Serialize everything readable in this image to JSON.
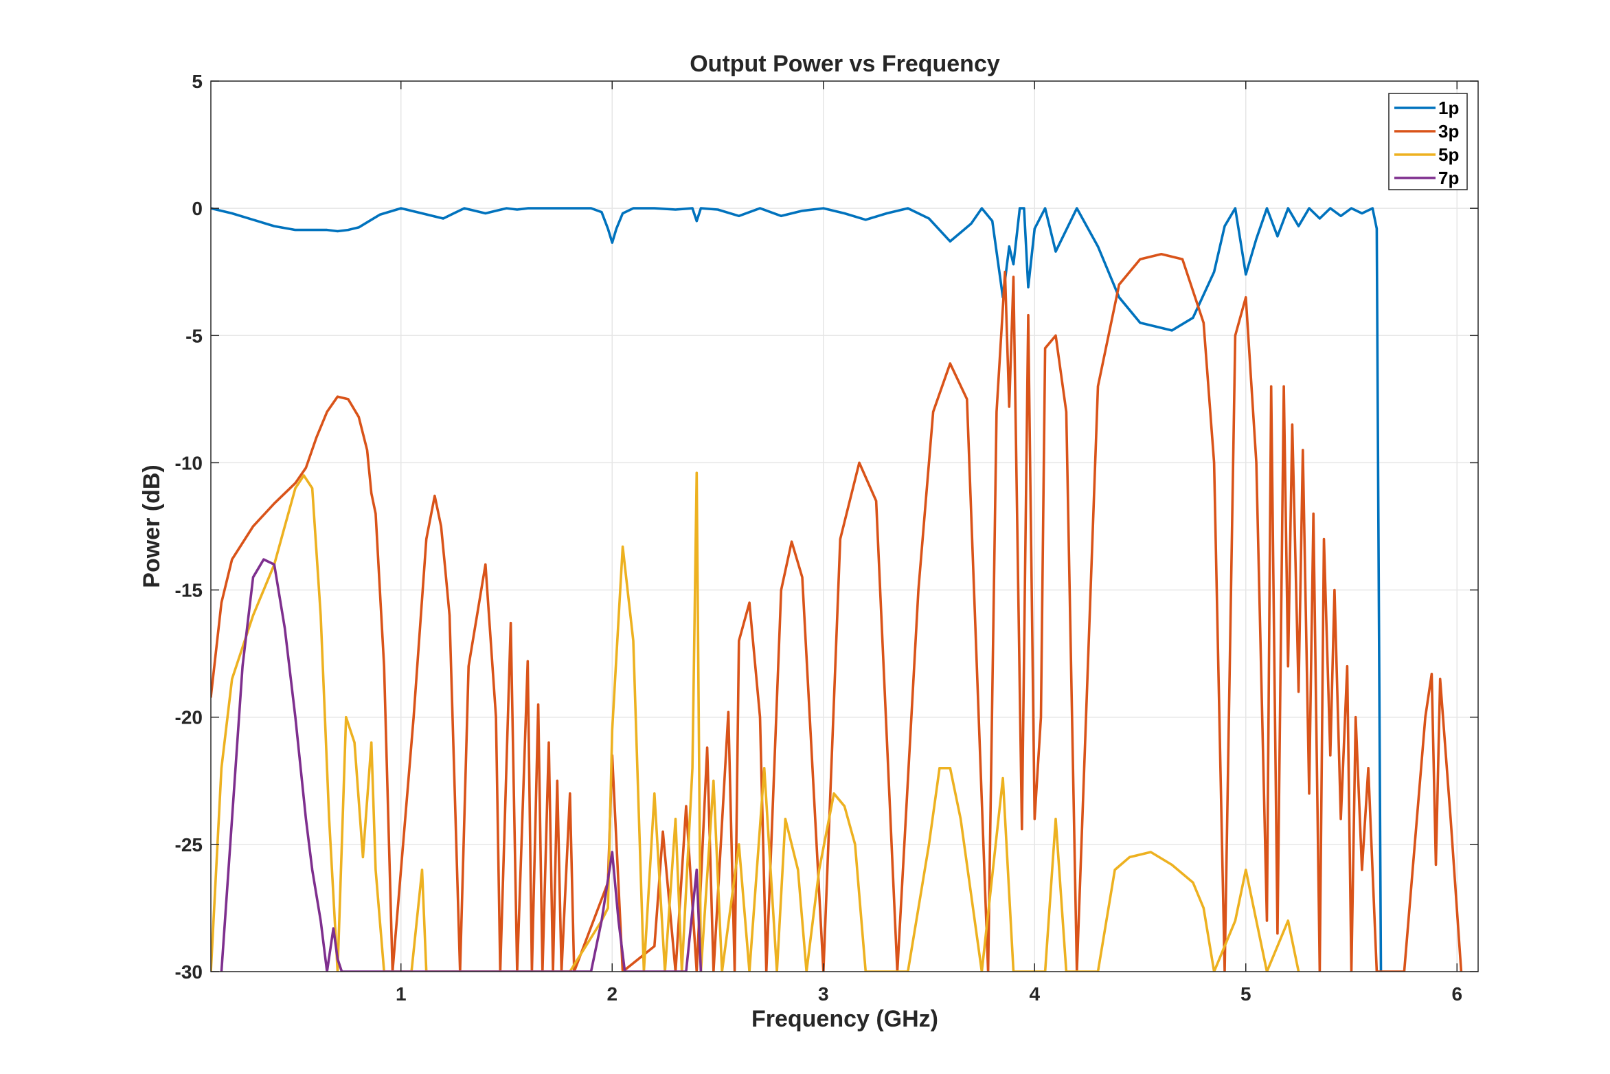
{
  "chart_data": {
    "type": "line",
    "title": "Output Power vs Frequency",
    "xlabel": "Frequency (GHz)",
    "ylabel": "Power (dB)",
    "xlim": [
      0.1,
      6.1
    ],
    "ylim": [
      -30,
      5
    ],
    "xticks": [
      1,
      2,
      3,
      4,
      5,
      6
    ],
    "yticks": [
      5,
      0,
      -5,
      -10,
      -15,
      -20,
      -25,
      -30
    ],
    "grid": true,
    "legend_position": "top-right",
    "series": [
      {
        "name": "1p",
        "color": "#0072BD",
        "points": [
          [
            0.1,
            0
          ],
          [
            0.2,
            -0.2
          ],
          [
            0.3,
            -0.45
          ],
          [
            0.4,
            -0.7
          ],
          [
            0.5,
            -0.85
          ],
          [
            0.6,
            -0.85
          ],
          [
            0.65,
            -0.85
          ],
          [
            0.7,
            -0.9
          ],
          [
            0.75,
            -0.85
          ],
          [
            0.8,
            -0.75
          ],
          [
            0.85,
            -0.5
          ],
          [
            0.9,
            -0.25
          ],
          [
            1.0,
            0
          ],
          [
            1.1,
            -0.2
          ],
          [
            1.2,
            -0.4
          ],
          [
            1.25,
            -0.2
          ],
          [
            1.3,
            0
          ],
          [
            1.35,
            -0.1
          ],
          [
            1.4,
            -0.2
          ],
          [
            1.45,
            -0.1
          ],
          [
            1.5,
            0
          ],
          [
            1.55,
            -0.05
          ],
          [
            1.6,
            0
          ],
          [
            1.7,
            0
          ],
          [
            1.8,
            0
          ],
          [
            1.9,
            0
          ],
          [
            1.95,
            -0.15
          ],
          [
            1.98,
            -0.8
          ],
          [
            2.0,
            -1.35
          ],
          [
            2.02,
            -0.8
          ],
          [
            2.05,
            -0.2
          ],
          [
            2.1,
            0
          ],
          [
            2.2,
            0
          ],
          [
            2.3,
            -0.05
          ],
          [
            2.38,
            0
          ],
          [
            2.4,
            -0.5
          ],
          [
            2.42,
            0
          ],
          [
            2.5,
            -0.05
          ],
          [
            2.6,
            -0.3
          ],
          [
            2.7,
            0
          ],
          [
            2.8,
            -0.3
          ],
          [
            2.9,
            -0.1
          ],
          [
            3.0,
            0
          ],
          [
            3.1,
            -0.2
          ],
          [
            3.2,
            -0.45
          ],
          [
            3.3,
            -0.2
          ],
          [
            3.4,
            0
          ],
          [
            3.5,
            -0.4
          ],
          [
            3.6,
            -1.3
          ],
          [
            3.7,
            -0.6
          ],
          [
            3.75,
            0
          ],
          [
            3.8,
            -0.5
          ],
          [
            3.85,
            -3.5
          ],
          [
            3.88,
            -1.5
          ],
          [
            3.9,
            -2.2
          ],
          [
            3.93,
            0
          ],
          [
            3.95,
            0
          ],
          [
            3.97,
            -3.1
          ],
          [
            4.0,
            -0.8
          ],
          [
            4.05,
            0
          ],
          [
            4.1,
            -1.7
          ],
          [
            4.2,
            0
          ],
          [
            4.3,
            -1.5
          ],
          [
            4.4,
            -3.5
          ],
          [
            4.5,
            -4.5
          ],
          [
            4.65,
            -4.8
          ],
          [
            4.75,
            -4.3
          ],
          [
            4.85,
            -2.5
          ],
          [
            4.9,
            -0.7
          ],
          [
            4.95,
            0
          ],
          [
            5.0,
            -2.6
          ],
          [
            5.05,
            -1.2
          ],
          [
            5.1,
            0
          ],
          [
            5.15,
            -1.1
          ],
          [
            5.2,
            0
          ],
          [
            5.25,
            -0.7
          ],
          [
            5.3,
            0
          ],
          [
            5.35,
            -0.4
          ],
          [
            5.4,
            0
          ],
          [
            5.45,
            -0.3
          ],
          [
            5.5,
            0
          ],
          [
            5.55,
            -0.2
          ],
          [
            5.6,
            0
          ],
          [
            5.62,
            -0.8
          ],
          [
            5.64,
            -30
          ]
        ]
      },
      {
        "name": "3p",
        "color": "#D95319",
        "points": [
          [
            0.1,
            -19.2
          ],
          [
            0.15,
            -15.5
          ],
          [
            0.2,
            -13.8
          ],
          [
            0.3,
            -12.5
          ],
          [
            0.4,
            -11.6
          ],
          [
            0.5,
            -10.8
          ],
          [
            0.55,
            -10.2
          ],
          [
            0.6,
            -9
          ],
          [
            0.65,
            -8
          ],
          [
            0.7,
            -7.4
          ],
          [
            0.75,
            -7.5
          ],
          [
            0.8,
            -8.2
          ],
          [
            0.84,
            -9.5
          ],
          [
            0.86,
            -11.2
          ],
          [
            0.88,
            -12
          ],
          [
            0.92,
            -18
          ],
          [
            0.96,
            -30
          ],
          [
            1.06,
            -20
          ],
          [
            1.12,
            -13
          ],
          [
            1.16,
            -11.3
          ],
          [
            1.19,
            -12.5
          ],
          [
            1.21,
            -14.2
          ],
          [
            1.23,
            -16
          ],
          [
            1.28,
            -30
          ],
          [
            1.32,
            -18
          ],
          [
            1.4,
            -14
          ],
          [
            1.45,
            -20
          ],
          [
            1.47,
            -30
          ],
          [
            1.52,
            -16.3
          ],
          [
            1.55,
            -30
          ],
          [
            1.6,
            -17.8
          ],
          [
            1.62,
            -30
          ],
          [
            1.65,
            -19.5
          ],
          [
            1.67,
            -30
          ],
          [
            1.7,
            -21
          ],
          [
            1.72,
            -30
          ],
          [
            1.74,
            -22.5
          ],
          [
            1.76,
            -30
          ],
          [
            1.8,
            -23
          ],
          [
            1.82,
            -30
          ],
          [
            1.98,
            -26.5
          ],
          [
            2.0,
            -21.5
          ],
          [
            2.05,
            -30
          ],
          [
            2.2,
            -29
          ],
          [
            2.24,
            -24.5
          ],
          [
            2.3,
            -30
          ],
          [
            2.35,
            -23.5
          ],
          [
            2.4,
            -30
          ],
          [
            2.45,
            -21.2
          ],
          [
            2.48,
            -30
          ],
          [
            2.55,
            -19.8
          ],
          [
            2.58,
            -30
          ],
          [
            2.6,
            -17
          ],
          [
            2.65,
            -15.5
          ],
          [
            2.7,
            -20
          ],
          [
            2.73,
            -30
          ],
          [
            2.8,
            -15
          ],
          [
            2.85,
            -13.1
          ],
          [
            2.9,
            -14.5
          ],
          [
            3.0,
            -30
          ],
          [
            3.08,
            -13
          ],
          [
            3.17,
            -10
          ],
          [
            3.25,
            -11.5
          ],
          [
            3.35,
            -30
          ],
          [
            3.45,
            -15
          ],
          [
            3.52,
            -8
          ],
          [
            3.6,
            -6.1
          ],
          [
            3.68,
            -7.5
          ],
          [
            3.78,
            -30
          ],
          [
            3.82,
            -8
          ],
          [
            3.86,
            -2.5
          ],
          [
            3.88,
            -7.8
          ],
          [
            3.9,
            -2.7
          ],
          [
            3.94,
            -24.4
          ],
          [
            3.97,
            -4.2
          ],
          [
            4.0,
            -24
          ],
          [
            4.03,
            -20
          ],
          [
            4.05,
            -5.5
          ],
          [
            4.1,
            -5
          ],
          [
            4.15,
            -8
          ],
          [
            4.2,
            -30
          ],
          [
            4.3,
            -7
          ],
          [
            4.4,
            -3
          ],
          [
            4.5,
            -2
          ],
          [
            4.6,
            -1.8
          ],
          [
            4.7,
            -2
          ],
          [
            4.8,
            -4.5
          ],
          [
            4.85,
            -10
          ],
          [
            4.9,
            -30
          ],
          [
            4.95,
            -5
          ],
          [
            5.0,
            -3.5
          ],
          [
            5.05,
            -10
          ],
          [
            5.1,
            -28
          ],
          [
            5.12,
            -7
          ],
          [
            5.15,
            -28.5
          ],
          [
            5.18,
            -7
          ],
          [
            5.2,
            -18
          ],
          [
            5.22,
            -8.5
          ],
          [
            5.25,
            -19
          ],
          [
            5.27,
            -9.5
          ],
          [
            5.3,
            -23
          ],
          [
            5.32,
            -12
          ],
          [
            5.35,
            -30
          ],
          [
            5.37,
            -13
          ],
          [
            5.4,
            -21.5
          ],
          [
            5.42,
            -15
          ],
          [
            5.45,
            -24
          ],
          [
            5.48,
            -18
          ],
          [
            5.5,
            -30
          ],
          [
            5.52,
            -20
          ],
          [
            5.55,
            -26
          ],
          [
            5.58,
            -22
          ],
          [
            5.62,
            -30
          ],
          [
            5.75,
            -30
          ],
          [
            5.85,
            -20
          ],
          [
            5.88,
            -18.3
          ],
          [
            5.9,
            -25.8
          ],
          [
            5.92,
            -18.5
          ],
          [
            5.97,
            -24
          ],
          [
            6.02,
            -30
          ]
        ]
      },
      {
        "name": "5p",
        "color": "#EDB120",
        "points": [
          [
            0.1,
            -30
          ],
          [
            0.15,
            -22
          ],
          [
            0.2,
            -18.5
          ],
          [
            0.3,
            -16
          ],
          [
            0.4,
            -14
          ],
          [
            0.45,
            -12.5
          ],
          [
            0.5,
            -11
          ],
          [
            0.54,
            -10.5
          ],
          [
            0.58,
            -11
          ],
          [
            0.62,
            -16
          ],
          [
            0.66,
            -24
          ],
          [
            0.7,
            -30
          ],
          [
            0.74,
            -20
          ],
          [
            0.78,
            -21
          ],
          [
            0.82,
            -25.5
          ],
          [
            0.86,
            -21
          ],
          [
            0.88,
            -26
          ],
          [
            0.92,
            -30
          ],
          [
            1.05,
            -30
          ],
          [
            1.1,
            -26
          ],
          [
            1.12,
            -30
          ],
          [
            1.3,
            -30
          ],
          [
            1.35,
            -30
          ],
          [
            1.62,
            -30
          ],
          [
            1.7,
            -30
          ],
          [
            1.8,
            -30
          ],
          [
            1.95,
            -28
          ],
          [
            1.98,
            -27.5
          ],
          [
            2.0,
            -20.5
          ],
          [
            2.05,
            -13.3
          ],
          [
            2.1,
            -17
          ],
          [
            2.15,
            -30
          ],
          [
            2.2,
            -23
          ],
          [
            2.25,
            -30
          ],
          [
            2.3,
            -24
          ],
          [
            2.33,
            -30
          ],
          [
            2.38,
            -22
          ],
          [
            2.4,
            -10.4
          ],
          [
            2.42,
            -30
          ],
          [
            2.48,
            -22.5
          ],
          [
            2.52,
            -30
          ],
          [
            2.6,
            -25
          ],
          [
            2.65,
            -30
          ],
          [
            2.72,
            -22
          ],
          [
            2.78,
            -30
          ],
          [
            2.82,
            -24
          ],
          [
            2.88,
            -26
          ],
          [
            2.92,
            -30
          ],
          [
            2.98,
            -26
          ],
          [
            3.05,
            -23
          ],
          [
            3.1,
            -23.5
          ],
          [
            3.15,
            -25
          ],
          [
            3.2,
            -30
          ],
          [
            3.25,
            -30
          ],
          [
            3.4,
            -30
          ],
          [
            3.5,
            -25
          ],
          [
            3.55,
            -22
          ],
          [
            3.6,
            -22
          ],
          [
            3.65,
            -24
          ],
          [
            3.7,
            -27
          ],
          [
            3.75,
            -30
          ],
          [
            3.85,
            -22.4
          ],
          [
            3.9,
            -30
          ],
          [
            4.05,
            -30
          ],
          [
            4.1,
            -24
          ],
          [
            4.15,
            -30
          ],
          [
            4.3,
            -30
          ],
          [
            4.38,
            -26
          ],
          [
            4.45,
            -25.5
          ],
          [
            4.55,
            -25.3
          ],
          [
            4.65,
            -25.8
          ],
          [
            4.75,
            -26.5
          ],
          [
            4.8,
            -27.5
          ],
          [
            4.85,
            -30
          ],
          [
            4.95,
            -28
          ],
          [
            5.0,
            -26
          ],
          [
            5.05,
            -28
          ],
          [
            5.1,
            -30
          ],
          [
            5.2,
            -28
          ],
          [
            5.25,
            -30
          ]
        ]
      },
      {
        "name": "7p",
        "color": "#7E2F8E",
        "points": [
          [
            0.15,
            -30
          ],
          [
            0.2,
            -24
          ],
          [
            0.25,
            -18
          ],
          [
            0.3,
            -14.5
          ],
          [
            0.35,
            -13.8
          ],
          [
            0.4,
            -14
          ],
          [
            0.45,
            -16.5
          ],
          [
            0.5,
            -20
          ],
          [
            0.55,
            -24
          ],
          [
            0.58,
            -26
          ],
          [
            0.62,
            -28
          ],
          [
            0.65,
            -30
          ],
          [
            0.68,
            -28.3
          ],
          [
            0.7,
            -29.5
          ],
          [
            0.72,
            -30
          ],
          [
            1.9,
            -30
          ],
          [
            1.95,
            -28
          ],
          [
            2.0,
            -25.3
          ],
          [
            2.03,
            -28
          ],
          [
            2.06,
            -30
          ],
          [
            2.35,
            -30
          ],
          [
            2.4,
            -26
          ],
          [
            2.42,
            -30
          ]
        ]
      }
    ]
  }
}
